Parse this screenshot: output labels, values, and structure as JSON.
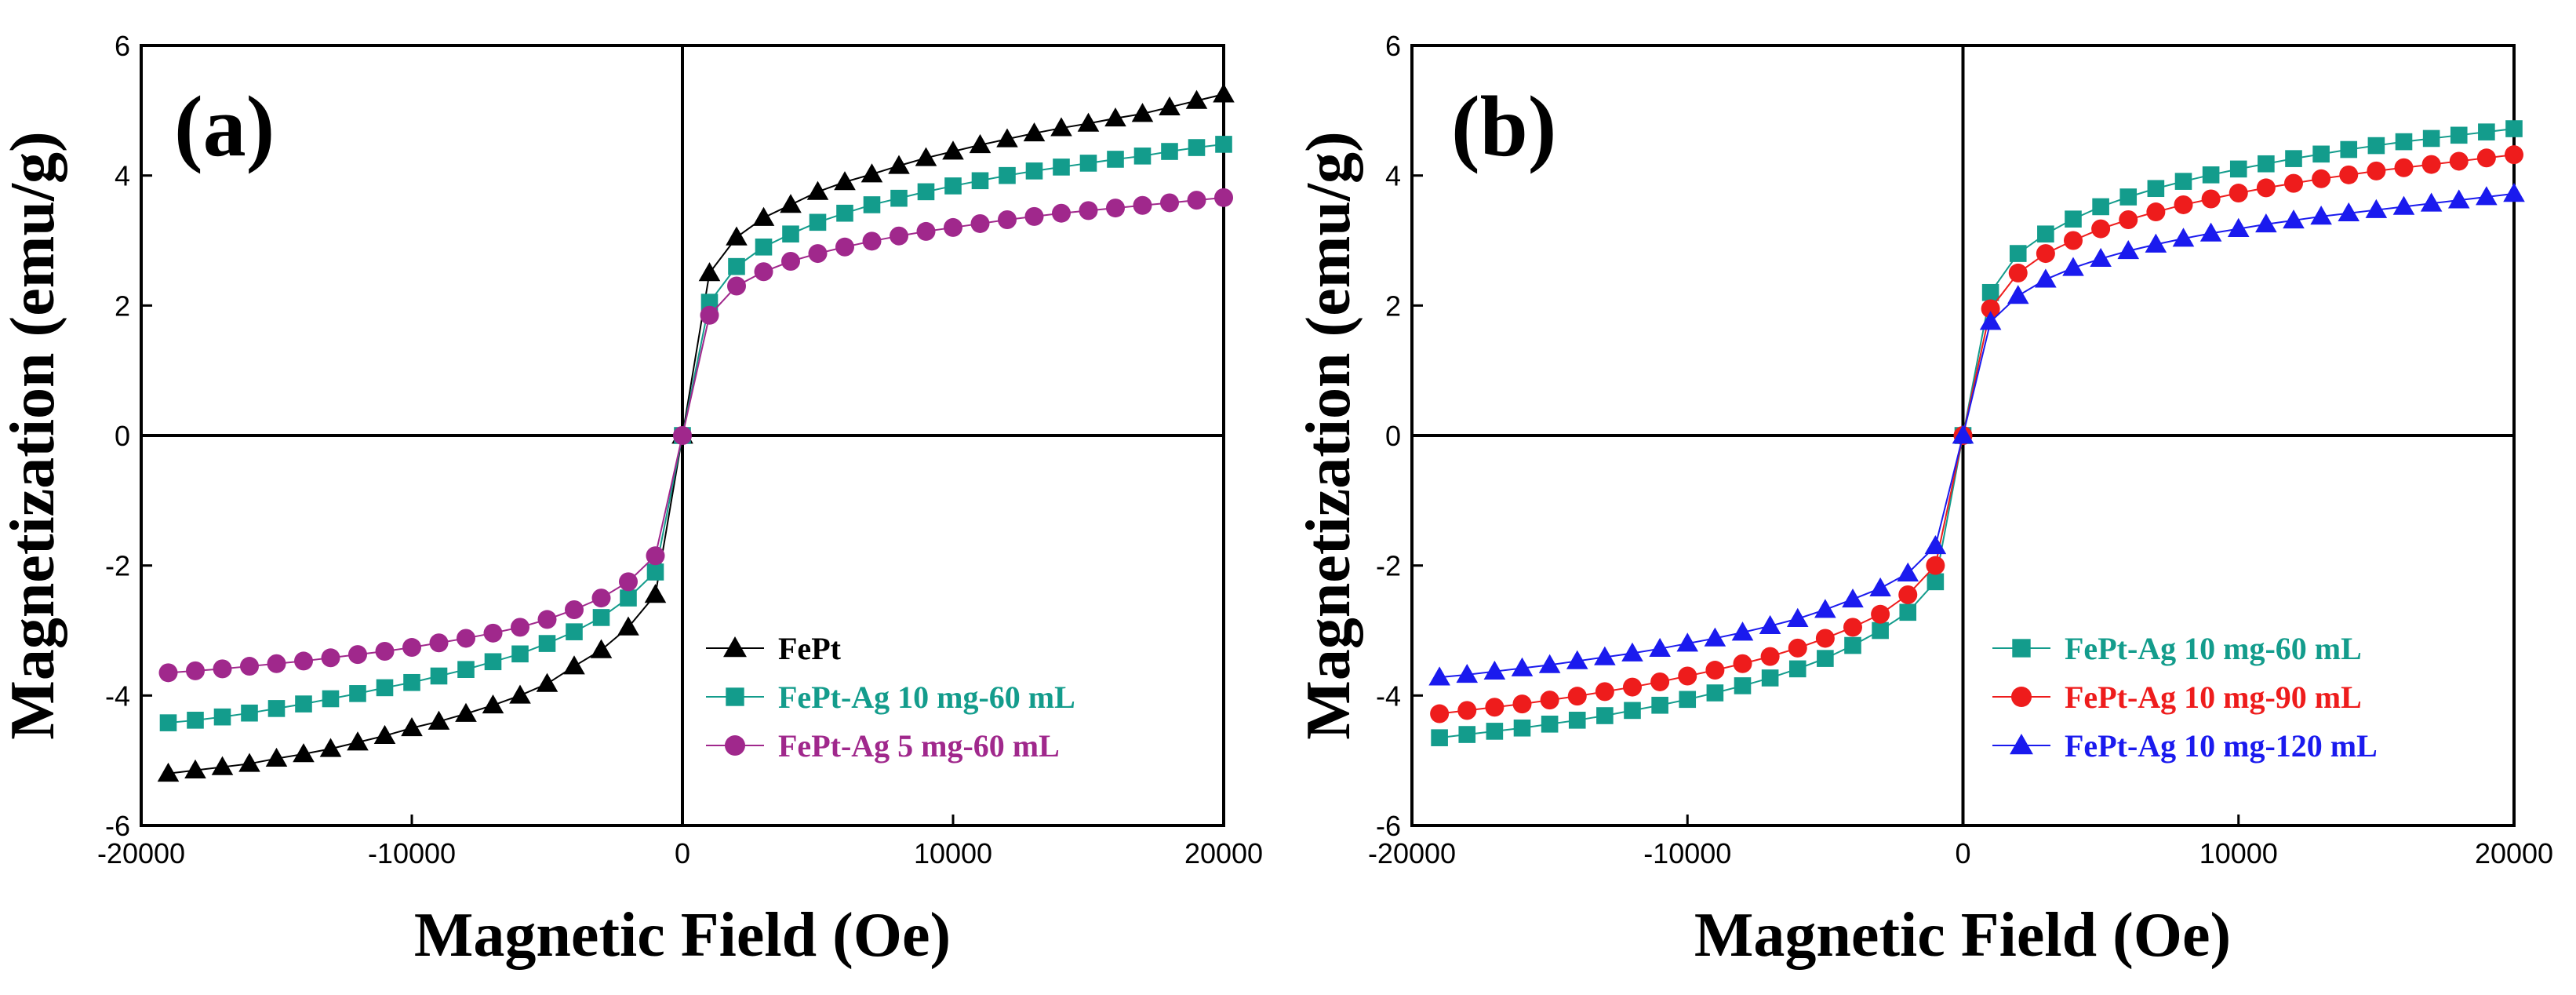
{
  "figure": {
    "xlabel": "Magnetic Field (Oe)",
    "ylabel": "Magnetization (emu/g)"
  },
  "chart_data": [
    {
      "type": "scatter",
      "panel_label": "(a)",
      "title": "",
      "xlabel": "Magnetic Field (Oe)",
      "ylabel": "Magnetization (emu/g)",
      "xlim": [
        -20000,
        20000
      ],
      "ylim": [
        -6,
        6
      ],
      "xticks": [
        -20000,
        -10000,
        0,
        10000,
        20000
      ],
      "yticks": [
        -6,
        -4,
        -2,
        0,
        2,
        4,
        6
      ],
      "legend_position": "bottom-right",
      "series": [
        {
          "name": "FePt",
          "marker": "triangle",
          "color": "#000000",
          "x": [
            -19000,
            -18000,
            -17000,
            -16000,
            -15000,
            -14000,
            -13000,
            -12000,
            -11000,
            -10000,
            -9000,
            -8000,
            -7000,
            -6000,
            -5000,
            -4000,
            -3000,
            -2000,
            -1000,
            0,
            1000,
            2000,
            3000,
            4000,
            5000,
            6000,
            7000,
            8000,
            9000,
            10000,
            11000,
            12000,
            13000,
            14000,
            15000,
            16000,
            17000,
            18000,
            19000,
            20000
          ],
          "y": [
            -5.2,
            -5.15,
            -5.1,
            -5.05,
            -4.97,
            -4.9,
            -4.82,
            -4.72,
            -4.62,
            -4.5,
            -4.4,
            -4.28,
            -4.15,
            -4.0,
            -3.82,
            -3.55,
            -3.3,
            -2.95,
            -2.45,
            0.0,
            2.5,
            3.05,
            3.35,
            3.55,
            3.75,
            3.9,
            4.02,
            4.15,
            4.27,
            4.37,
            4.47,
            4.56,
            4.65,
            4.73,
            4.8,
            4.88,
            4.95,
            5.05,
            5.15,
            5.25
          ]
        },
        {
          "name": "FePt-Ag 10 mg-60 mL",
          "marker": "square",
          "color": "#139c8c",
          "x": [
            -19000,
            -18000,
            -17000,
            -16000,
            -15000,
            -14000,
            -13000,
            -12000,
            -11000,
            -10000,
            -9000,
            -8000,
            -7000,
            -6000,
            -5000,
            -4000,
            -3000,
            -2000,
            -1000,
            0,
            1000,
            2000,
            3000,
            4000,
            5000,
            6000,
            7000,
            8000,
            9000,
            10000,
            11000,
            12000,
            13000,
            14000,
            15000,
            16000,
            17000,
            18000,
            19000,
            20000
          ],
          "y": [
            -4.42,
            -4.38,
            -4.33,
            -4.27,
            -4.2,
            -4.13,
            -4.05,
            -3.97,
            -3.88,
            -3.8,
            -3.7,
            -3.6,
            -3.48,
            -3.36,
            -3.2,
            -3.02,
            -2.8,
            -2.5,
            -2.1,
            0.0,
            2.05,
            2.6,
            2.9,
            3.1,
            3.28,
            3.42,
            3.55,
            3.65,
            3.75,
            3.84,
            3.92,
            4.0,
            4.07,
            4.13,
            4.19,
            4.25,
            4.3,
            4.37,
            4.43,
            4.48
          ]
        },
        {
          "name": "FePt-Ag 5 mg-60 mL",
          "marker": "circle",
          "color": "#a0288c",
          "x": [
            -19000,
            -18000,
            -17000,
            -16000,
            -15000,
            -14000,
            -13000,
            -12000,
            -11000,
            -10000,
            -9000,
            -8000,
            -7000,
            -6000,
            -5000,
            -4000,
            -3000,
            -2000,
            -1000,
            0,
            1000,
            2000,
            3000,
            4000,
            5000,
            6000,
            7000,
            8000,
            9000,
            10000,
            11000,
            12000,
            13000,
            14000,
            15000,
            16000,
            17000,
            18000,
            19000,
            20000
          ],
          "y": [
            -3.65,
            -3.62,
            -3.59,
            -3.55,
            -3.51,
            -3.47,
            -3.42,
            -3.37,
            -3.32,
            -3.26,
            -3.19,
            -3.12,
            -3.04,
            -2.95,
            -2.83,
            -2.68,
            -2.5,
            -2.25,
            -1.85,
            0.0,
            1.85,
            2.3,
            2.52,
            2.68,
            2.8,
            2.9,
            2.99,
            3.07,
            3.14,
            3.2,
            3.26,
            3.32,
            3.37,
            3.42,
            3.46,
            3.5,
            3.54,
            3.58,
            3.62,
            3.66
          ]
        }
      ]
    },
    {
      "type": "scatter",
      "panel_label": "(b)",
      "title": "",
      "xlabel": "Magnetic Field (Oe)",
      "ylabel": "Magnetization (emu/g)",
      "xlim": [
        -20000,
        20000
      ],
      "ylim": [
        -6,
        6
      ],
      "xticks": [
        -20000,
        -10000,
        0,
        10000,
        20000
      ],
      "yticks": [
        -6,
        -4,
        -2,
        0,
        2,
        4,
        6
      ],
      "legend_position": "bottom-right",
      "series": [
        {
          "name": "FePt-Ag 10 mg-60 mL",
          "marker": "square",
          "color": "#139c8c",
          "x": [
            -19000,
            -18000,
            -17000,
            -16000,
            -15000,
            -14000,
            -13000,
            -12000,
            -11000,
            -10000,
            -9000,
            -8000,
            -7000,
            -6000,
            -5000,
            -4000,
            -3000,
            -2000,
            -1000,
            0,
            1000,
            2000,
            3000,
            4000,
            5000,
            6000,
            7000,
            8000,
            9000,
            10000,
            11000,
            12000,
            13000,
            14000,
            15000,
            16000,
            17000,
            18000,
            19000,
            20000
          ],
          "y": [
            -4.65,
            -4.6,
            -4.55,
            -4.5,
            -4.44,
            -4.38,
            -4.31,
            -4.23,
            -4.15,
            -4.06,
            -3.96,
            -3.85,
            -3.73,
            -3.59,
            -3.43,
            -3.23,
            -3.0,
            -2.72,
            -2.25,
            0.0,
            2.2,
            2.8,
            3.1,
            3.33,
            3.52,
            3.67,
            3.8,
            3.91,
            4.01,
            4.1,
            4.18,
            4.26,
            4.33,
            4.4,
            4.46,
            4.52,
            4.57,
            4.62,
            4.67,
            4.72
          ]
        },
        {
          "name": "FePt-Ag 10 mg-90 mL",
          "marker": "circle",
          "color": "#ee1c1c",
          "x": [
            -19000,
            -18000,
            -17000,
            -16000,
            -15000,
            -14000,
            -13000,
            -12000,
            -11000,
            -10000,
            -9000,
            -8000,
            -7000,
            -6000,
            -5000,
            -4000,
            -3000,
            -2000,
            -1000,
            0,
            1000,
            2000,
            3000,
            4000,
            5000,
            6000,
            7000,
            8000,
            9000,
            10000,
            11000,
            12000,
            13000,
            14000,
            15000,
            16000,
            17000,
            18000,
            19000,
            20000
          ],
          "y": [
            -4.28,
            -4.23,
            -4.18,
            -4.13,
            -4.07,
            -4.01,
            -3.94,
            -3.87,
            -3.79,
            -3.7,
            -3.61,
            -3.51,
            -3.4,
            -3.27,
            -3.12,
            -2.95,
            -2.75,
            -2.45,
            -2.0,
            0.0,
            1.95,
            2.5,
            2.8,
            3.0,
            3.18,
            3.32,
            3.44,
            3.55,
            3.64,
            3.73,
            3.81,
            3.88,
            3.95,
            4.01,
            4.07,
            4.12,
            4.17,
            4.22,
            4.27,
            4.32
          ]
        },
        {
          "name": "FePt-Ag 10 mg-120 mL",
          "marker": "triangle",
          "color": "#1a1aee",
          "x": [
            -19000,
            -18000,
            -17000,
            -16000,
            -15000,
            -14000,
            -13000,
            -12000,
            -11000,
            -10000,
            -9000,
            -8000,
            -7000,
            -6000,
            -5000,
            -4000,
            -3000,
            -2000,
            -1000,
            0,
            1000,
            2000,
            3000,
            4000,
            5000,
            6000,
            7000,
            8000,
            9000,
            10000,
            11000,
            12000,
            13000,
            14000,
            15000,
            16000,
            17000,
            18000,
            19000,
            20000
          ],
          "y": [
            -3.72,
            -3.68,
            -3.63,
            -3.58,
            -3.53,
            -3.47,
            -3.41,
            -3.35,
            -3.28,
            -3.2,
            -3.12,
            -3.03,
            -2.93,
            -2.82,
            -2.68,
            -2.52,
            -2.35,
            -2.12,
            -1.7,
            0.0,
            1.75,
            2.15,
            2.4,
            2.58,
            2.72,
            2.84,
            2.94,
            3.03,
            3.11,
            3.18,
            3.25,
            3.31,
            3.37,
            3.42,
            3.47,
            3.52,
            3.57,
            3.62,
            3.67,
            3.72
          ]
        }
      ]
    }
  ]
}
